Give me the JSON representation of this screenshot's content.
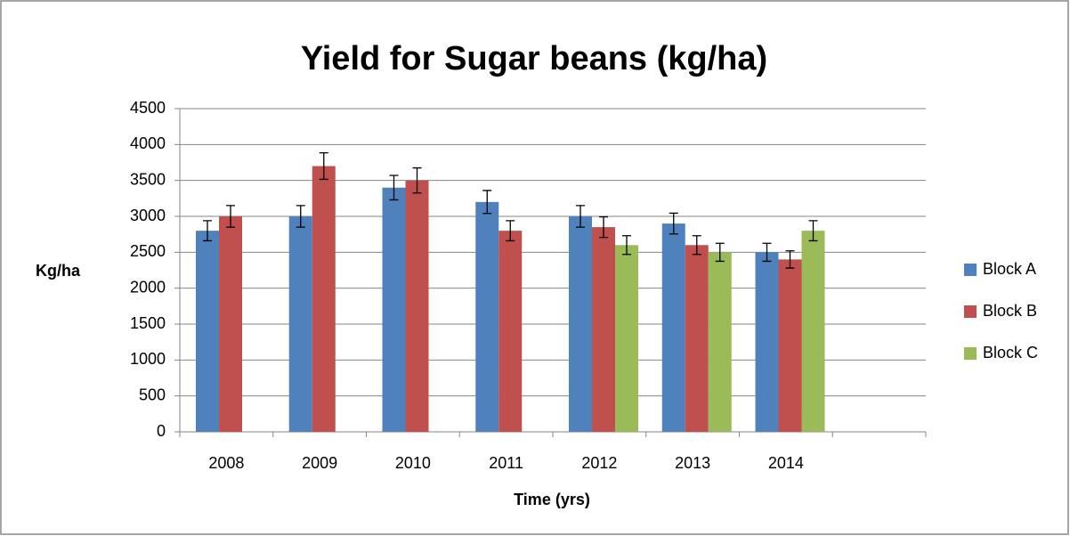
{
  "chart_data": {
    "type": "bar",
    "title": "Yield for Sugar beans (kg/ha)",
    "x_label": "Time (yrs)",
    "y_label": "Kg/ha",
    "categories": [
      "2008",
      "2009",
      "2010",
      "2011",
      "2012",
      "2013",
      "2014",
      null
    ],
    "series": [
      {
        "name": "Block A",
        "color": "#4f81bd",
        "values": [
          2800,
          3000,
          3400,
          3200,
          3000,
          2900,
          2500,
          null
        ],
        "errors": [
          140,
          150,
          170,
          160,
          150,
          145,
          125,
          null
        ]
      },
      {
        "name": "Block B",
        "color": "#c0504d",
        "values": [
          3000,
          3700,
          3500,
          2800,
          2850,
          2600,
          2400,
          null
        ],
        "errors": [
          150,
          185,
          175,
          140,
          143,
          130,
          120,
          null
        ]
      },
      {
        "name": "Block C",
        "color": "#9bbb59",
        "values": [
          null,
          null,
          null,
          null,
          2600,
          2500,
          2800,
          null
        ],
        "errors": [
          null,
          null,
          null,
          null,
          130,
          125,
          140,
          null
        ]
      }
    ],
    "ylim": [
      0,
      4500
    ],
    "yticks": [
      0,
      500,
      1000,
      1500,
      2000,
      2500,
      3000,
      3500,
      4000,
      4500
    ],
    "grid": true,
    "legend": "right"
  }
}
